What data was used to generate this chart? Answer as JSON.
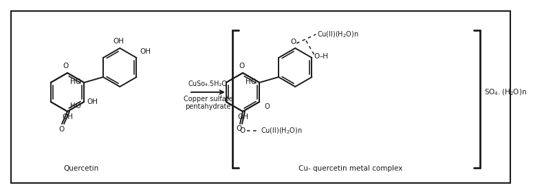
{
  "bg_color": "#ffffff",
  "line_color": "#1a1a1a",
  "lw": 1.4,
  "fontsize": 7.5,
  "label_quercetin": "Quercetin",
  "label_complex": "Cu- quercetin metal complex",
  "reagent_line1": "CuSo₄.5H₂O",
  "reagent_line2": "Copper sulfate",
  "reagent_line3": "pentahydrate",
  "so4_label": "SO₄.(H₂O)n",
  "cu_top": "Cu(ll)(H₂O)n",
  "cu_bot": "Cu(ll)(H₂O)n",
  "oh": "OH",
  "ho": "HO",
  "o_label": "O",
  "o_dashed": "O",
  "h_label": "H"
}
